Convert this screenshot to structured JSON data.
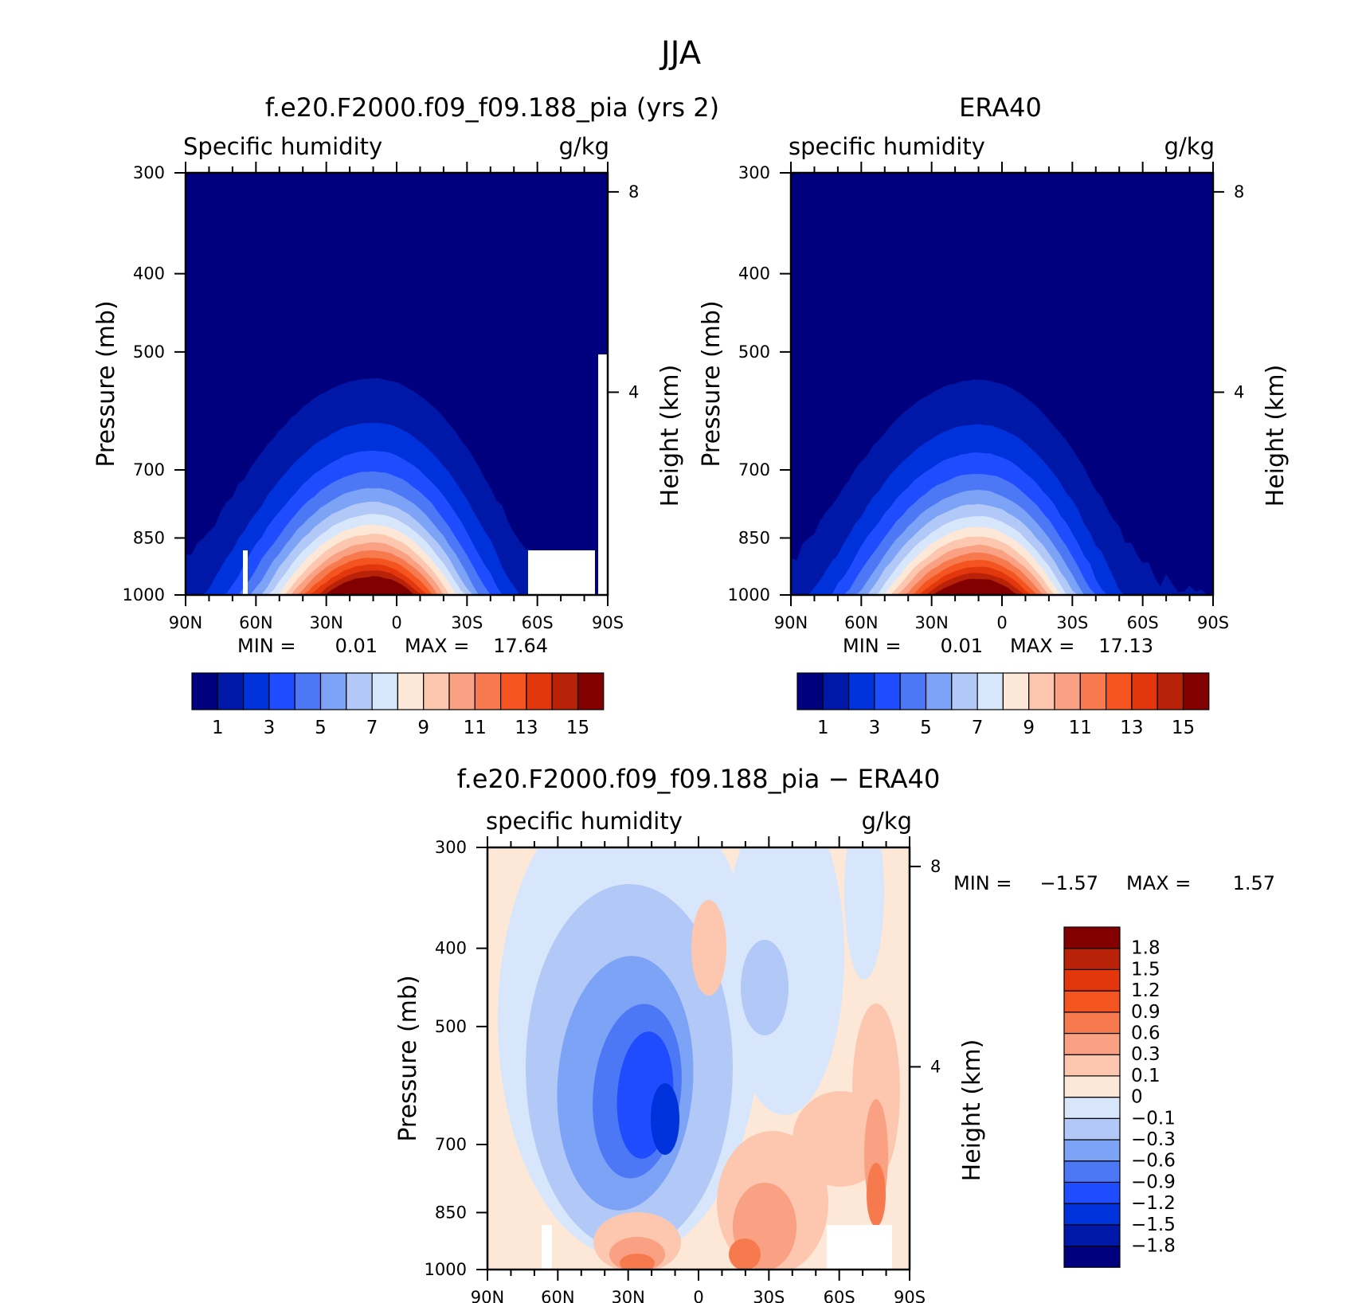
{
  "figure": {
    "title": "JJA"
  },
  "chart_data": [
    {
      "type": "heatmap",
      "id": "model",
      "title": "f.e20.F2000.f09_f09.188_pia (yrs 2)",
      "left_label": "Specific humidity",
      "right_label": "g/kg",
      "ylabel": "Pressure (mb)",
      "ylabel_right": "Height (km)",
      "x_ticks": [
        "90N",
        "60N",
        "30N",
        "0",
        "30S",
        "60S",
        "90S"
      ],
      "y_ticks": [
        "300",
        "400",
        "500",
        "700",
        "850",
        "1000"
      ],
      "y_ticks_right": [
        "8",
        "4"
      ],
      "ylim": [
        1000,
        300
      ],
      "log_scale_y": true,
      "min_label": "MIN =",
      "min_value": "0.01",
      "max_label": "MAX =",
      "max_value": "17.64",
      "peak": {
        "lat": 10,
        "value": 17.64
      }
    },
    {
      "type": "heatmap",
      "id": "obs",
      "title": "ERA40",
      "left_label": "specific humidity",
      "right_label": "g/kg",
      "ylabel": "Pressure (mb)",
      "ylabel_right": "Height (km)",
      "x_ticks": [
        "90N",
        "60N",
        "30N",
        "0",
        "30S",
        "60S",
        "90S"
      ],
      "y_ticks": [
        "300",
        "400",
        "500",
        "700",
        "850",
        "1000"
      ],
      "y_ticks_right": [
        "8",
        "4"
      ],
      "ylim": [
        1000,
        300
      ],
      "log_scale_y": true,
      "min_label": "MIN =",
      "min_value": "0.01",
      "max_label": "MAX =",
      "max_value": "17.13",
      "peak": {
        "lat": 10,
        "value": 17.13
      }
    },
    {
      "type": "heatmap",
      "id": "diff",
      "title": "f.e20.F2000.f09_f09.188_pia - ERA40",
      "left_label": "specific humidity",
      "right_label": "g/kg",
      "ylabel": "Pressure (mb)",
      "ylabel_right": "Height (km)",
      "x_ticks": [
        "90N",
        "60N",
        "30N",
        "0",
        "30S",
        "60S",
        "90S"
      ],
      "y_ticks": [
        "300",
        "400",
        "500",
        "700",
        "850",
        "1000"
      ],
      "y_ticks_right": [
        "8",
        "4"
      ],
      "ylim": [
        1000,
        300
      ],
      "log_scale_y": true,
      "min_label": "MIN =",
      "min_value": "-1.57",
      "max_label": "MAX =",
      "max_value": "1.57"
    }
  ],
  "colorbar_abs": {
    "colors": [
      "#00007f",
      "#0018a8",
      "#0032dc",
      "#1f4cff",
      "#4c78f5",
      "#7ca3f5",
      "#b2c9f8",
      "#d8e6fb",
      "#fde8d8",
      "#fcc7ae",
      "#f9a182",
      "#f67a4e",
      "#f4541f",
      "#e2360c",
      "#b82209",
      "#820000"
    ],
    "tick_labels": [
      "1",
      "3",
      "5",
      "7",
      "9",
      "11",
      "13",
      "15"
    ]
  },
  "colorbar_diff": {
    "colors": [
      "#00007f",
      "#0018a8",
      "#0032dc",
      "#1f4cff",
      "#4c78f5",
      "#7ca3f5",
      "#b2c9f8",
      "#d8e6fb",
      "#fde8d8",
      "#fcc7ae",
      "#f9a182",
      "#f67a4e",
      "#f4541f",
      "#e2360c",
      "#b82209",
      "#820000"
    ],
    "tick_labels": [
      "-1.8",
      "-1.5",
      "-1.2",
      "-0.9",
      "-0.6",
      "-0.3",
      "-0.1",
      "0",
      "0.1",
      "0.3",
      "0.6",
      "0.9",
      "1.2",
      "1.5",
      "1.8"
    ]
  }
}
